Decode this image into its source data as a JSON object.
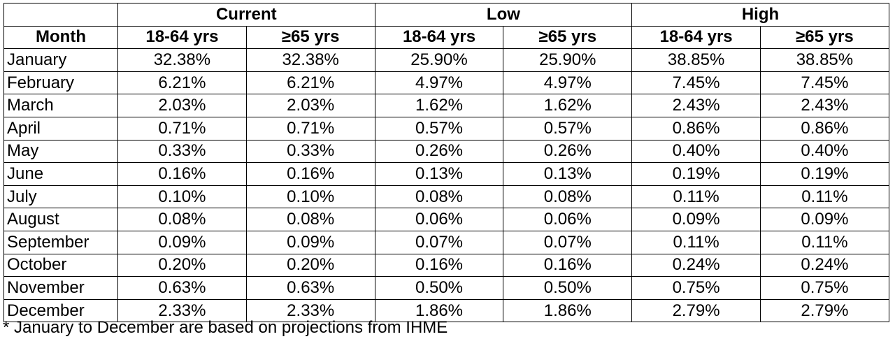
{
  "table": {
    "group_headers": [
      "",
      "Current",
      "Low",
      "High"
    ],
    "column_headers": [
      "Month",
      "18-64 yrs",
      "≥65 yrs",
      "18-64 yrs",
      "≥65 yrs",
      "18-64 yrs",
      "≥65 yrs"
    ],
    "rows": [
      {
        "month": "January",
        "values": [
          "32.38%",
          "32.38%",
          "25.90%",
          "25.90%",
          "38.85%",
          "38.85%"
        ]
      },
      {
        "month": "February",
        "values": [
          "6.21%",
          "6.21%",
          "4.97%",
          "4.97%",
          "7.45%",
          "7.45%"
        ]
      },
      {
        "month": "March",
        "values": [
          "2.03%",
          "2.03%",
          "1.62%",
          "1.62%",
          "2.43%",
          "2.43%"
        ]
      },
      {
        "month": "April",
        "values": [
          "0.71%",
          "0.71%",
          "0.57%",
          "0.57%",
          "0.86%",
          "0.86%"
        ]
      },
      {
        "month": "May",
        "values": [
          "0.33%",
          "0.33%",
          "0.26%",
          "0.26%",
          "0.40%",
          "0.40%"
        ]
      },
      {
        "month": "June",
        "values": [
          "0.16%",
          "0.16%",
          "0.13%",
          "0.13%",
          "0.19%",
          "0.19%"
        ]
      },
      {
        "month": "July",
        "values": [
          "0.10%",
          "0.10%",
          "0.08%",
          "0.08%",
          "0.11%",
          "0.11%"
        ]
      },
      {
        "month": "August",
        "values": [
          "0.08%",
          "0.08%",
          "0.06%",
          "0.06%",
          "0.09%",
          "0.09%"
        ]
      },
      {
        "month": "September",
        "values": [
          "0.09%",
          "0.09%",
          "0.07%",
          "0.07%",
          "0.11%",
          "0.11%"
        ]
      },
      {
        "month": "October",
        "values": [
          "0.20%",
          "0.20%",
          "0.16%",
          "0.16%",
          "0.24%",
          "0.24%"
        ]
      },
      {
        "month": "November",
        "values": [
          "0.63%",
          "0.63%",
          "0.50%",
          "0.50%",
          "0.75%",
          "0.75%"
        ]
      },
      {
        "month": "December",
        "values": [
          "2.33%",
          "2.33%",
          "1.86%",
          "1.86%",
          "2.79%",
          "2.79%"
        ]
      }
    ]
  },
  "footnote": "* January to December are based on projections from IHME"
}
